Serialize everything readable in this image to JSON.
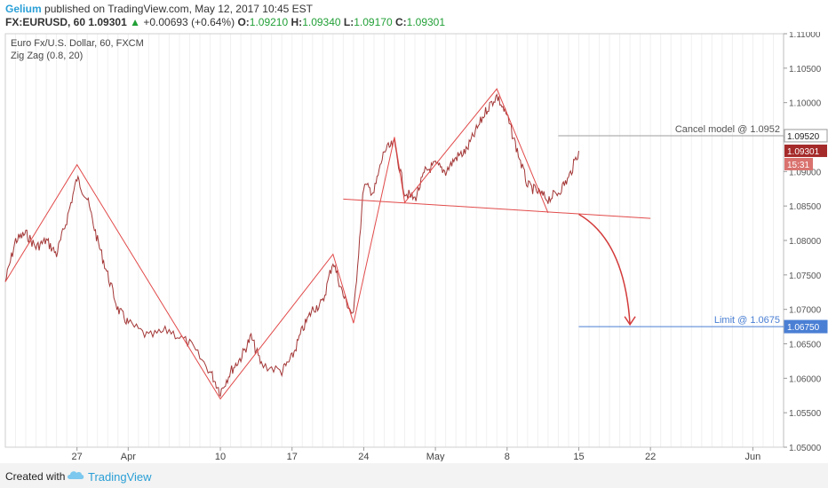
{
  "header": {
    "author": "Gelium",
    "published_text": "published on TradingView.com, May 12, 2017 10:45 EST",
    "symbol": "FX:EURUSD, 60",
    "last": "1.09301",
    "change_arrow": "▲",
    "change": "+0.00693 (+0.64%)",
    "o_label": "O:",
    "o": "1.09210",
    "h_label": "H:",
    "h": "1.09340",
    "l_label": "L:",
    "l": "1.09170",
    "c_label": "C:",
    "c": "1.09301"
  },
  "legend": {
    "title": "Euro Fx/U.S. Dollar, 60, FXCM",
    "indicator": "Zig Zag (0.8, 20)"
  },
  "footer": {
    "created_with": "Created with",
    "brand": "TradingView"
  },
  "colors": {
    "price": "#a33636",
    "zigzag": "#e24a4a",
    "neckline": "#e24a4a",
    "cancel_line": "#9e9e9e",
    "limit_line": "#4a7fd4",
    "last_badge": "#a52a2a",
    "countdown_badge": "#d9726e",
    "arrow": "#d33a3a"
  },
  "chart_data": {
    "type": "line",
    "title": "Euro Fx/U.S. Dollar, 60, FXCM",
    "x_ticks": [
      {
        "label": "27",
        "date": "2017-03-27"
      },
      {
        "label": "Apr",
        "date": "2017-04-01"
      },
      {
        "label": "10",
        "date": "2017-04-10"
      },
      {
        "label": "17",
        "date": "2017-04-17"
      },
      {
        "label": "24",
        "date": "2017-04-24"
      },
      {
        "label": "May",
        "date": "2017-05-01"
      },
      {
        "label": "8",
        "date": "2017-05-08"
      },
      {
        "label": "15",
        "date": "2017-05-15"
      },
      {
        "label": "22",
        "date": "2017-05-22"
      },
      {
        "label": "Jun",
        "date": "2017-06-01"
      }
    ],
    "y_ticks": [
      "1.11000",
      "1.10500",
      "1.10000",
      "1.09500",
      "1.09000",
      "1.08500",
      "1.08000",
      "1.07500",
      "1.07000",
      "1.06500",
      "1.06000",
      "1.05500",
      "1.05000"
    ],
    "ylim": [
      1.05,
      1.11
    ],
    "xlim": [
      "2017-03-20",
      "2017-06-04"
    ],
    "grid": true,
    "price_path": [
      {
        "x": "2017-03-20",
        "y": 1.074
      },
      {
        "x": "2017-03-21",
        "y": 1.08
      },
      {
        "x": "2017-03-22",
        "y": 1.081
      },
      {
        "x": "2017-03-23",
        "y": 1.079
      },
      {
        "x": "2017-03-24",
        "y": 1.08
      },
      {
        "x": "2017-03-25",
        "y": 1.078
      },
      {
        "x": "2017-03-26",
        "y": 1.083
      },
      {
        "x": "2017-03-27",
        "y": 1.089
      },
      {
        "x": "2017-03-28",
        "y": 1.086
      },
      {
        "x": "2017-03-29",
        "y": 1.08
      },
      {
        "x": "2017-03-30",
        "y": 1.075
      },
      {
        "x": "2017-03-31",
        "y": 1.07
      },
      {
        "x": "2017-04-01",
        "y": 1.068
      },
      {
        "x": "2017-04-03",
        "y": 1.066
      },
      {
        "x": "2017-04-05",
        "y": 1.067
      },
      {
        "x": "2017-04-07",
        "y": 1.065
      },
      {
        "x": "2017-04-09",
        "y": 1.061
      },
      {
        "x": "2017-04-10",
        "y": 1.058
      },
      {
        "x": "2017-04-11",
        "y": 1.061
      },
      {
        "x": "2017-04-12",
        "y": 1.063
      },
      {
        "x": "2017-04-13",
        "y": 1.066
      },
      {
        "x": "2017-04-14",
        "y": 1.062
      },
      {
        "x": "2017-04-16",
        "y": 1.061
      },
      {
        "x": "2017-04-17",
        "y": 1.063
      },
      {
        "x": "2017-04-18",
        "y": 1.067
      },
      {
        "x": "2017-04-19",
        "y": 1.07
      },
      {
        "x": "2017-04-20",
        "y": 1.071
      },
      {
        "x": "2017-04-21",
        "y": 1.077
      },
      {
        "x": "2017-04-22",
        "y": 1.072
      },
      {
        "x": "2017-04-23",
        "y": 1.069
      },
      {
        "x": "2017-04-24",
        "y": 1.088
      },
      {
        "x": "2017-04-25",
        "y": 1.087
      },
      {
        "x": "2017-04-26",
        "y": 1.093
      },
      {
        "x": "2017-04-27",
        "y": 1.094
      },
      {
        "x": "2017-04-28",
        "y": 1.087
      },
      {
        "x": "2017-04-29",
        "y": 1.086
      },
      {
        "x": "2017-04-30",
        "y": 1.09
      },
      {
        "x": "2017-05-01",
        "y": 1.091
      },
      {
        "x": "2017-05-02",
        "y": 1.09
      },
      {
        "x": "2017-05-03",
        "y": 1.092
      },
      {
        "x": "2017-05-04",
        "y": 1.093
      },
      {
        "x": "2017-05-05",
        "y": 1.096
      },
      {
        "x": "2017-05-06",
        "y": 1.099
      },
      {
        "x": "2017-05-07",
        "y": 1.101
      },
      {
        "x": "2017-05-08",
        "y": 1.098
      },
      {
        "x": "2017-05-09",
        "y": 1.093
      },
      {
        "x": "2017-05-10",
        "y": 1.088
      },
      {
        "x": "2017-05-11",
        "y": 1.087
      },
      {
        "x": "2017-05-12",
        "y": 1.086
      },
      {
        "x": "2017-05-13",
        "y": 1.087
      },
      {
        "x": "2017-05-14",
        "y": 1.089
      },
      {
        "x": "2017-05-15",
        "y": 1.093
      }
    ],
    "zigzag": [
      {
        "x": "2017-03-20",
        "y": 1.074
      },
      {
        "x": "2017-03-27",
        "y": 1.091
      },
      {
        "x": "2017-04-10",
        "y": 1.057
      },
      {
        "x": "2017-04-21",
        "y": 1.078
      },
      {
        "x": "2017-04-23",
        "y": 1.068
      },
      {
        "x": "2017-04-27",
        "y": 1.095
      },
      {
        "x": "2017-04-28",
        "y": 1.0855
      },
      {
        "x": "2017-05-07",
        "y": 1.102
      },
      {
        "x": "2017-05-12",
        "y": 1.084
      }
    ],
    "neckline": [
      {
        "x": "2017-04-22",
        "y": 1.086
      },
      {
        "x": "2017-05-22",
        "y": 1.0832
      }
    ],
    "levels": [
      {
        "label": "Cancel model @ 1.0952",
        "value": 1.0952,
        "badge": "1.09520",
        "x_start": "2017-05-13"
      },
      {
        "label": "Limit @ 1.0675",
        "value": 1.0675,
        "badge": "1.06750",
        "x_start": "2017-05-15"
      }
    ],
    "last_price": {
      "value": 1.09301,
      "badge": "1.09301",
      "countdown": "15:31"
    },
    "projection_arrow": {
      "from": {
        "x": "2017-05-15",
        "y": 1.0838
      },
      "to": {
        "x": "2017-05-20",
        "y": 1.0678
      }
    }
  }
}
